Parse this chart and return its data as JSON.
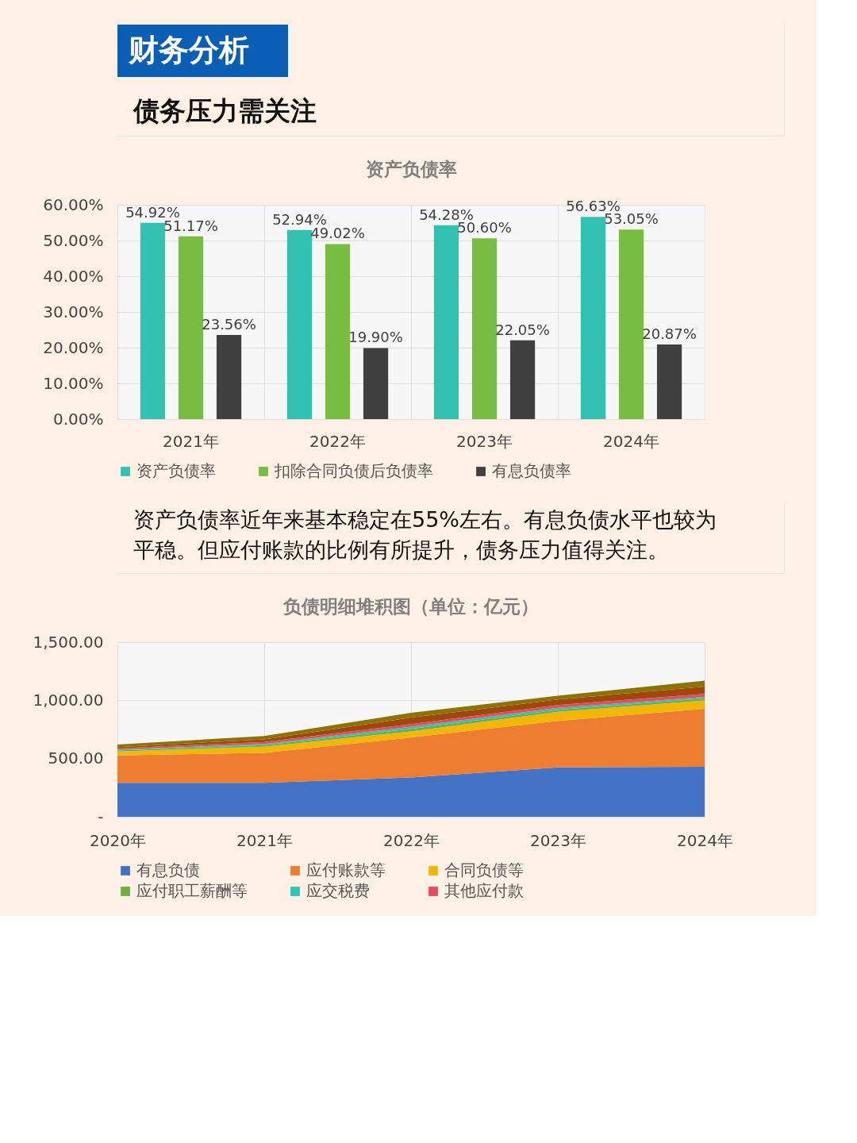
{
  "chart_data": [
    {
      "type": "other",
      "title": "财务分析",
      "subtitle": "债务压力需关注"
    },
    {
      "type": "bar",
      "title": "资产负债率",
      "categories": [
        "2021年",
        "2022年",
        "2023年",
        "2024年"
      ],
      "series": [
        {
          "name": "资产负债率",
          "color": "#33c1b1",
          "values": [
            54.92,
            52.94,
            54.28,
            56.63
          ],
          "value_labels": [
            "54.92%",
            "52.94%",
            "54.28%",
            "56.63%"
          ]
        },
        {
          "name": "扣除合同负债后负债率",
          "color": "#78bc42",
          "values": [
            51.17,
            49.02,
            50.6,
            53.05
          ],
          "value_labels": [
            "51.17%",
            "49.02%",
            "50.60%",
            "53.05%"
          ]
        },
        {
          "name": "有息负债率",
          "color": "#404040",
          "values": [
            23.56,
            19.9,
            22.05,
            20.87
          ],
          "value_labels": [
            "23.56%",
            "19.90%",
            "22.05%",
            "20.87%"
          ]
        }
      ],
      "ylim": [
        0,
        60
      ],
      "yticks": [
        {
          "value": 0,
          "label": "0.00%"
        },
        {
          "value": 10,
          "label": "10.00%"
        },
        {
          "value": 20,
          "label": "20.00%"
        },
        {
          "value": 30,
          "label": "30.00%"
        },
        {
          "value": 40,
          "label": "40.00%"
        },
        {
          "value": 50,
          "label": "50.00%"
        },
        {
          "value": 60,
          "label": "60.00%"
        }
      ],
      "grid": true,
      "legend": "bottom"
    },
    {
      "type": "other",
      "annotations": [
        "资产负债率近年来基本稳定在55%左右。有息负债水平也较为",
        "平稳。但应付账款的比例有所提升，债务压力值得关注。"
      ]
    },
    {
      "type": "area",
      "title": "负债明细堆积图（单位：亿元）",
      "categories": [
        "2020年",
        "2021年",
        "2022年",
        "2023年",
        "2024年"
      ],
      "stacked": true,
      "series": [
        {
          "name": "有息负债",
          "color": "#4472c4",
          "values": [
            292,
            292,
            338,
            424,
            429
          ]
        },
        {
          "name": "应付账款等",
          "color": "#ed7d31",
          "values": [
            235,
            257,
            343,
            400,
            498
          ]
        },
        {
          "name": "合同负债等",
          "color": "#f2b705",
          "values": [
            34,
            52,
            52,
            77,
            72
          ]
        },
        {
          "name": "应付职工薪酬等",
          "color": "#70ad47",
          "values": [
            8,
            14,
            22,
            17,
            17
          ]
        },
        {
          "name": "应交税费",
          "color": "#2ec4b6",
          "values": [
            8,
            11,
            19,
            17,
            14
          ]
        },
        {
          "name": "其他应付款",
          "color": "#e84a5f",
          "values": [
            11,
            17,
            22,
            25,
            25
          ]
        },
        {
          "color": "#9e480e",
          "values": [
            11,
            22,
            56,
            47,
            64
          ]
        },
        {
          "color": "#8c7300",
          "values": [
            22,
            28,
            42,
            33,
            50
          ]
        }
      ],
      "ylim": [
        0,
        1500
      ],
      "yticks": [
        {
          "value": 0,
          "label": "-"
        },
        {
          "value": 500,
          "label": "500.00"
        },
        {
          "value": 1000,
          "label": "1,000.00"
        },
        {
          "value": 1500,
          "label": "1,500.00"
        }
      ],
      "grid": true,
      "legend": "bottom"
    }
  ]
}
